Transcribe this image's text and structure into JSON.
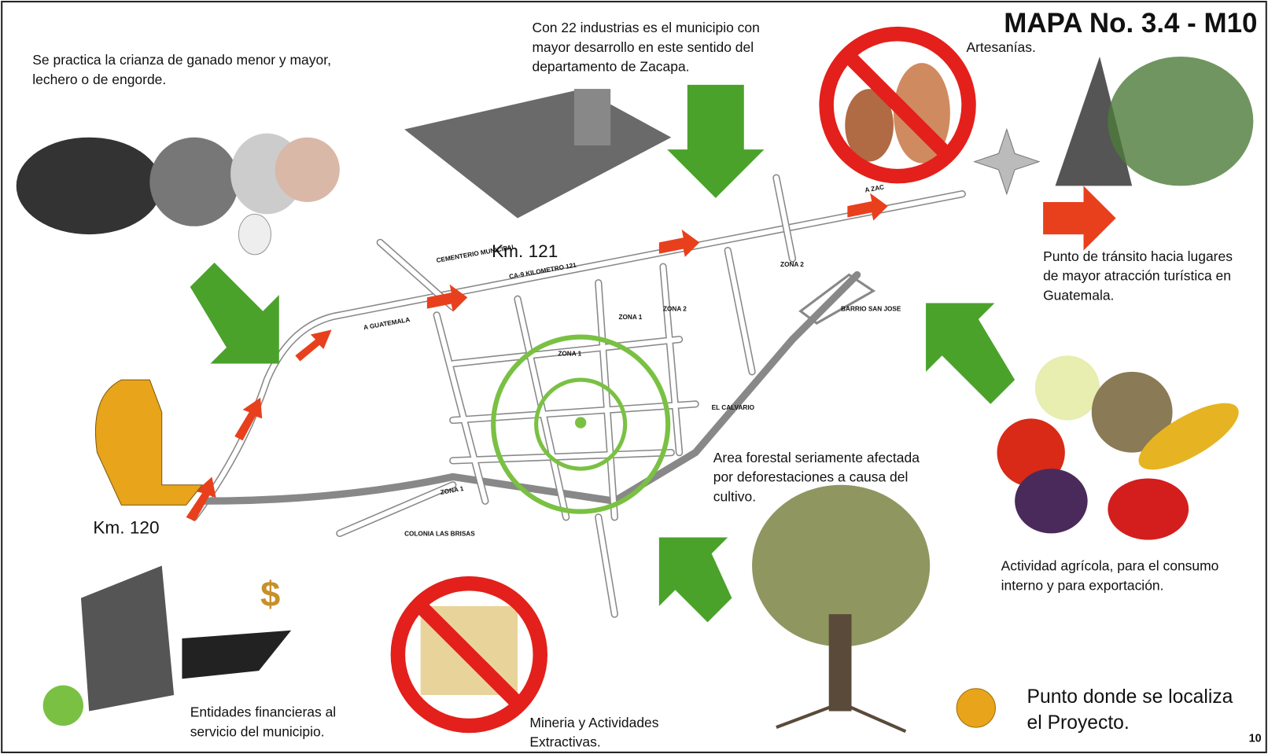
{
  "header": {
    "title": "MAPA No. 3.4 - M10",
    "page_number": "10"
  },
  "annotations": {
    "livestock": [
      "Se practica la crianza de ganado menor y mayor,",
      "lechero o de engorde."
    ],
    "industry": [
      "Con 22 industrias es el municipio con",
      "mayor desarrollo en este sentido del",
      "departamento de Zacapa."
    ],
    "crafts": [
      "Artesanías."
    ],
    "tourism": [
      "Punto de tránsito hacia lugares",
      "de mayor atracción turística en",
      "Guatemala."
    ],
    "agriculture": [
      "Actividad agrícola, para el consumo",
      "interno y para exportación."
    ],
    "forest": [
      "Area forestal seriamente afectada",
      "por deforestaciones a causa del",
      "cultivo."
    ],
    "finance": [
      "Entidades financieras al",
      "servicio del municipio."
    ],
    "mining": [
      "Mineria y Actividades",
      "Extractivas."
    ]
  },
  "map": {
    "km_labels": [
      "Km. 121",
      "Km. 120"
    ],
    "place_labels": [
      "A GUATEMALA",
      "CA-9 KILOMETRO 121",
      "ZONA 1",
      "ZONA 1",
      "ZONA 1",
      "ZONA 2",
      "ZONA 2",
      "BARRIO SAN JOSE",
      "EL CALVARIO",
      "CEMENTERIO MUNICIPAL",
      "COLONIA LAS BRISAS",
      "A ZAC"
    ]
  },
  "legend": {
    "project_point": [
      "Punto donde se localiza",
      "el Proyecto."
    ]
  }
}
